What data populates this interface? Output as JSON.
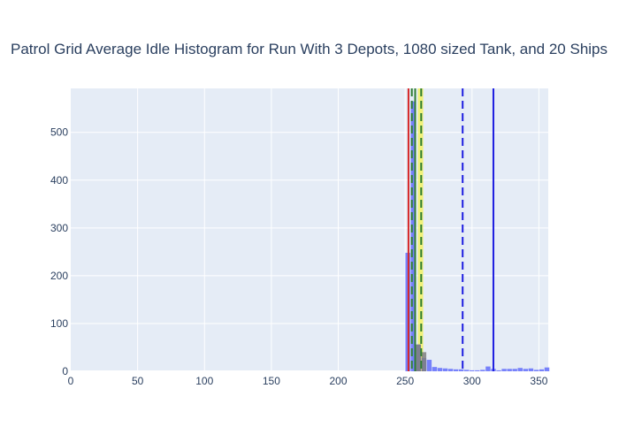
{
  "chart_data": {
    "type": "bar",
    "title": "Patrol Grid Average Idle Histogram for Run With 3 Depots, 1080 sized Tank, and 20 Ships",
    "xlabel": "",
    "ylabel": "",
    "xlim": [
      0,
      357
    ],
    "ylim": [
      0,
      592
    ],
    "x_ticks": [
      0,
      50,
      100,
      150,
      200,
      250,
      300,
      350
    ],
    "y_ticks": [
      0,
      100,
      200,
      300,
      400,
      500
    ],
    "grid": true,
    "bar_width": 4,
    "series": [
      {
        "color": "#636efa",
        "opacity": 0.85,
        "bins": [
          {
            "x0": 250,
            "value": 248
          },
          {
            "x0": 254,
            "value": 565
          },
          {
            "x0": 258,
            "value": 56
          },
          {
            "x0": 262,
            "value": 28
          },
          {
            "x0": 266,
            "value": 24
          },
          {
            "x0": 270,
            "value": 9
          },
          {
            "x0": 274,
            "value": 7
          },
          {
            "x0": 278,
            "value": 6
          },
          {
            "x0": 282,
            "value": 5
          },
          {
            "x0": 286,
            "value": 4
          },
          {
            "x0": 290,
            "value": 4
          },
          {
            "x0": 294,
            "value": 3
          },
          {
            "x0": 298,
            "value": 2
          },
          {
            "x0": 302,
            "value": 2
          },
          {
            "x0": 306,
            "value": 3
          },
          {
            "x0": 310,
            "value": 10
          },
          {
            "x0": 314,
            "value": 5
          },
          {
            "x0": 318,
            "value": 2
          },
          {
            "x0": 322,
            "value": 5
          },
          {
            "x0": 326,
            "value": 5
          },
          {
            "x0": 330,
            "value": 5
          },
          {
            "x0": 334,
            "value": 7
          },
          {
            "x0": 338,
            "value": 5
          },
          {
            "x0": 342,
            "value": 6
          },
          {
            "x0": 346,
            "value": 3
          },
          {
            "x0": 350,
            "value": 4
          },
          {
            "x0": 354,
            "value": 8
          }
        ]
      },
      {
        "color": "#7f7f7f",
        "opacity": 0.85,
        "bins": [
          {
            "x0": 258,
            "value": 56
          },
          {
            "x0": 262,
            "value": 40
          }
        ]
      }
    ],
    "shaded_regions": [
      {
        "x0": 259.5,
        "x1": 263.5,
        "color": "#f2f25a",
        "opacity": 0.8
      }
    ],
    "reference_lines": [
      {
        "x": 252.5,
        "color": "#d62728",
        "dash": "solid"
      },
      {
        "x": 255.0,
        "color": "#2e7d32",
        "dash": "dash"
      },
      {
        "x": 257.5,
        "color": "#2e7d32",
        "dash": "solid"
      },
      {
        "x": 262.0,
        "color": "#2e7d32",
        "dash": "dash"
      },
      {
        "x": 293.0,
        "color": "#1f1fe0",
        "dash": "dash"
      },
      {
        "x": 316.0,
        "color": "#1f1fe0",
        "dash": "solid"
      }
    ]
  }
}
